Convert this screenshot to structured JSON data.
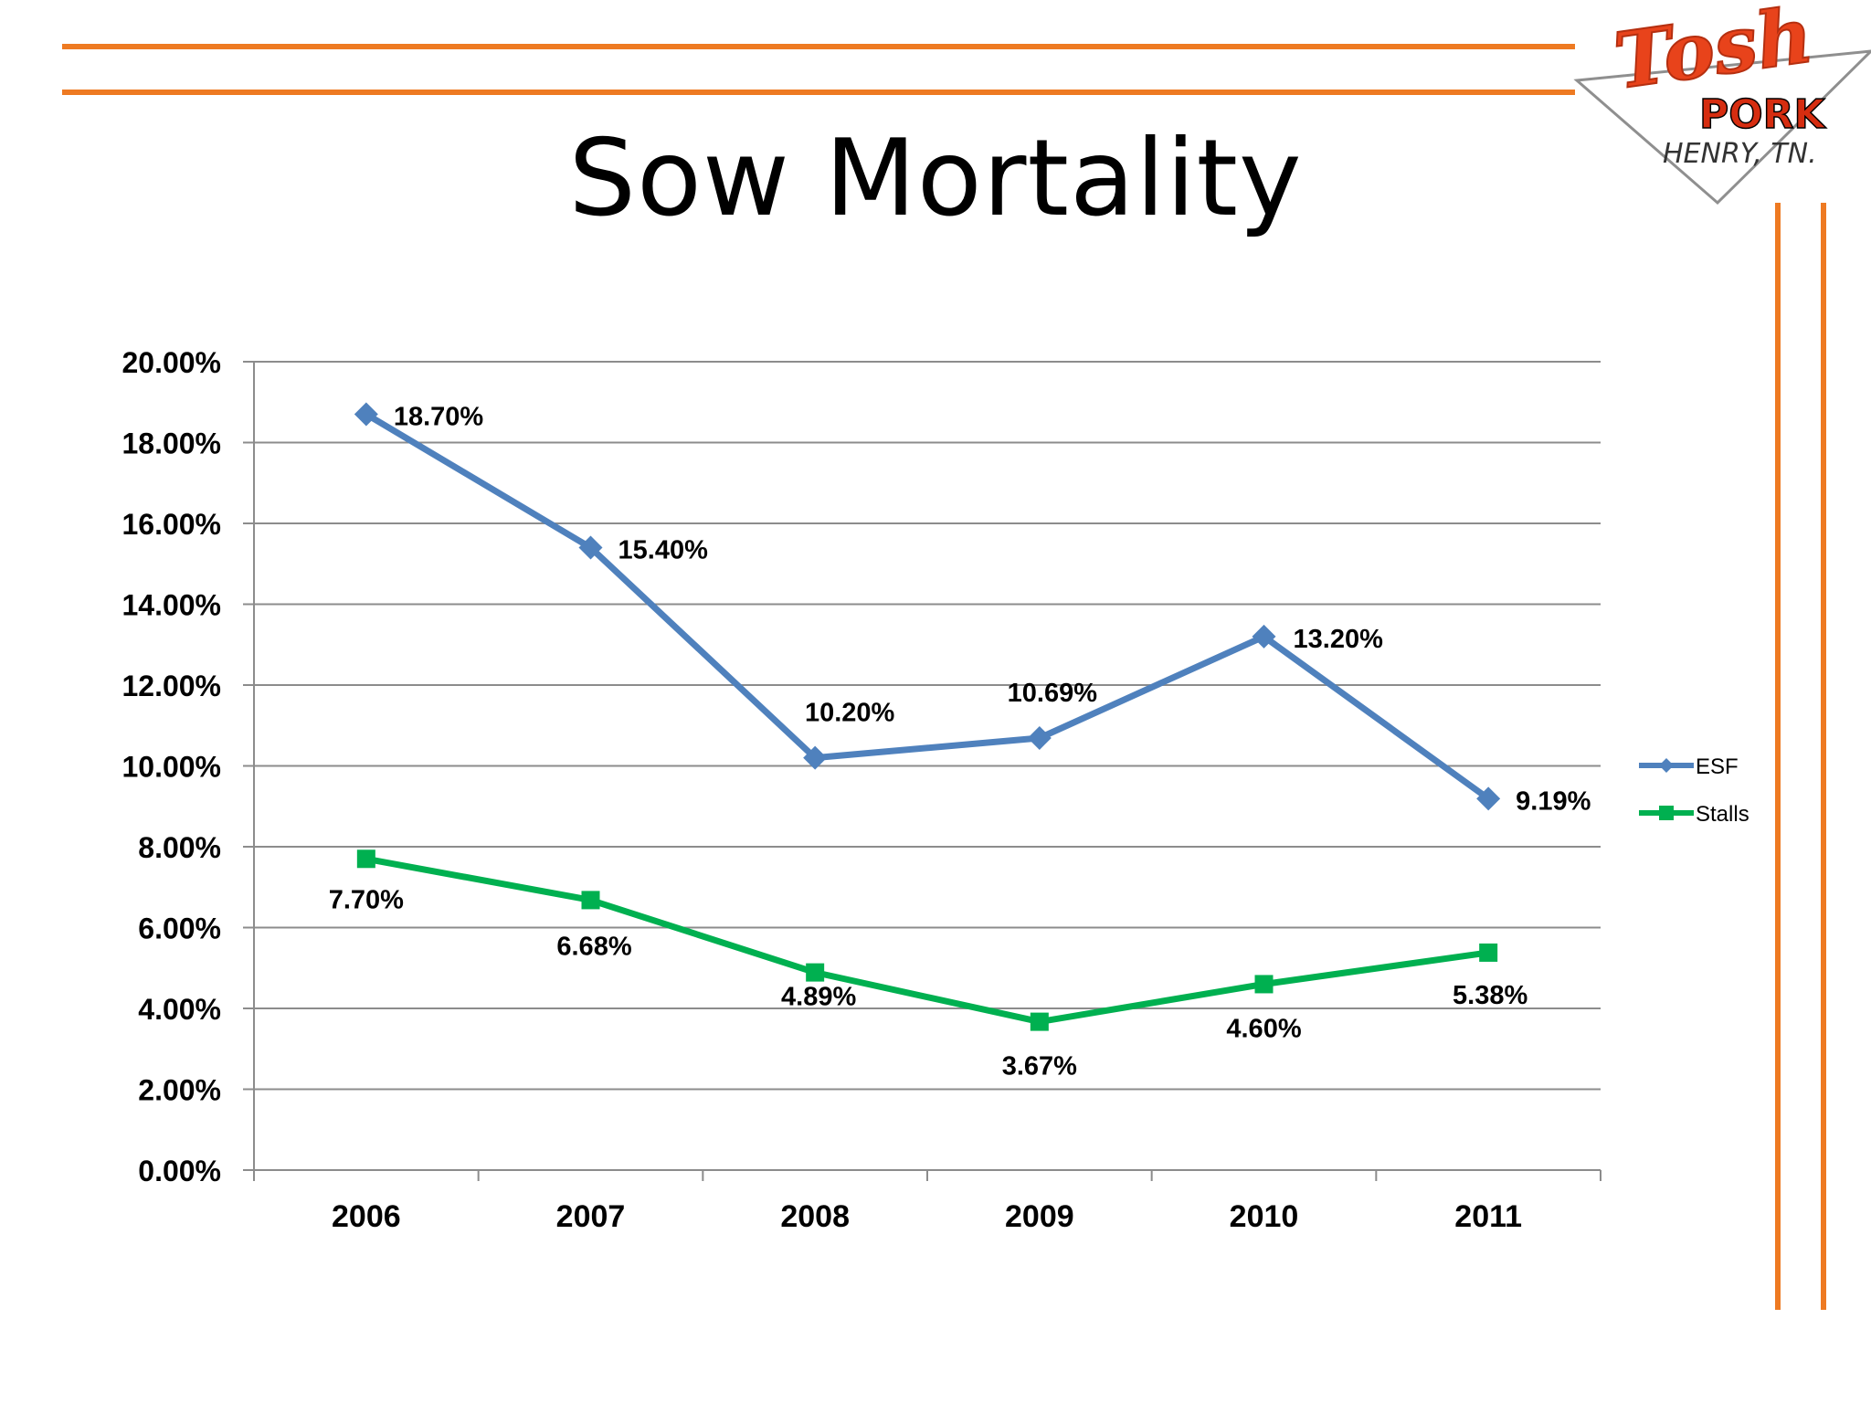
{
  "slide": {
    "title": "Sow Mortality",
    "accent_color": "#ee7a22"
  },
  "logo": {
    "brand_script": "Tosh",
    "brand_word": "PORK",
    "location": "HENRY, TN."
  },
  "chart_data": {
    "type": "line",
    "title": "Sow Mortality",
    "categories": [
      "2006",
      "2007",
      "2008",
      "2009",
      "2010",
      "2011"
    ],
    "series": [
      {
        "name": "ESF",
        "color": "#4f81bd",
        "marker": "diamond",
        "values": [
          18.7,
          15.4,
          10.2,
          10.69,
          13.2,
          9.19
        ],
        "labels": [
          "18.70%",
          "15.40%",
          "10.20%",
          "10.69%",
          "13.20%",
          "9.19%"
        ]
      },
      {
        "name": "Stalls",
        "color": "#00b050",
        "marker": "square",
        "values": [
          7.7,
          6.68,
          4.89,
          3.67,
          4.6,
          5.38
        ],
        "labels": [
          "7.70%",
          "6.68%",
          "4.89%",
          "3.67%",
          "4.60%",
          "5.38%"
        ]
      }
    ],
    "ylim": [
      0,
      20
    ],
    "yticks": [
      "0.00%",
      "2.00%",
      "4.00%",
      "6.00%",
      "8.00%",
      "10.00%",
      "12.00%",
      "14.00%",
      "16.00%",
      "18.00%",
      "20.00%"
    ],
    "grid": true,
    "legend": "right",
    "xlabel": "",
    "ylabel": ""
  }
}
